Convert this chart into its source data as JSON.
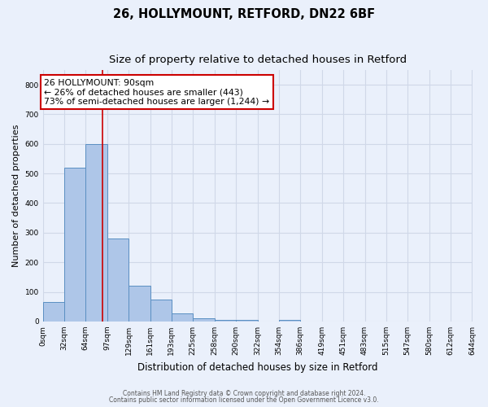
{
  "title_line1": "26, HOLLYMOUNT, RETFORD, DN22 6BF",
  "title_line2": "Size of property relative to detached houses in Retford",
  "xlabel": "Distribution of detached houses by size in Retford",
  "ylabel": "Number of detached properties",
  "bin_edges": [
    0,
    32,
    64,
    97,
    129,
    161,
    193,
    225,
    258,
    290,
    322,
    354,
    386,
    419,
    451,
    483,
    515,
    547,
    580,
    612,
    644
  ],
  "bar_heights": [
    65,
    520,
    600,
    280,
    120,
    75,
    28,
    12,
    5,
    5,
    0,
    5,
    0,
    0,
    0,
    0,
    0,
    0,
    0,
    0
  ],
  "tick_labels": [
    "0sqm",
    "32sqm",
    "64sqm",
    "97sqm",
    "129sqm",
    "161sqm",
    "193sqm",
    "225sqm",
    "258sqm",
    "290sqm",
    "322sqm",
    "354sqm",
    "386sqm",
    "419sqm",
    "451sqm",
    "483sqm",
    "515sqm",
    "547sqm",
    "580sqm",
    "612sqm",
    "644sqm"
  ],
  "bar_color": "#aec6e8",
  "bar_edge_color": "#5a8fc2",
  "grid_color": "#d0d8e8",
  "background_color": "#eaf0fb",
  "vline_x": 90,
  "vline_color": "#cc0000",
  "annotation_text": "26 HOLLYMOUNT: 90sqm\n← 26% of detached houses are smaller (443)\n73% of semi-detached houses are larger (1,244) →",
  "annotation_box_color": "#ffffff",
  "annotation_box_edge": "#cc0000",
  "ylim": [
    0,
    850
  ],
  "yticks": [
    0,
    100,
    200,
    300,
    400,
    500,
    600,
    700,
    800
  ],
  "footnote1": "Contains HM Land Registry data © Crown copyright and database right 2024.",
  "footnote2": "Contains public sector information licensed under the Open Government Licence v3.0.",
  "title_fontsize": 10.5,
  "subtitle_fontsize": 9.5,
  "annot_fontsize": 7.8,
  "ylabel_fontsize": 8,
  "xlabel_fontsize": 8.5,
  "tick_fontsize": 6.5,
  "footnote_fontsize": 5.5
}
